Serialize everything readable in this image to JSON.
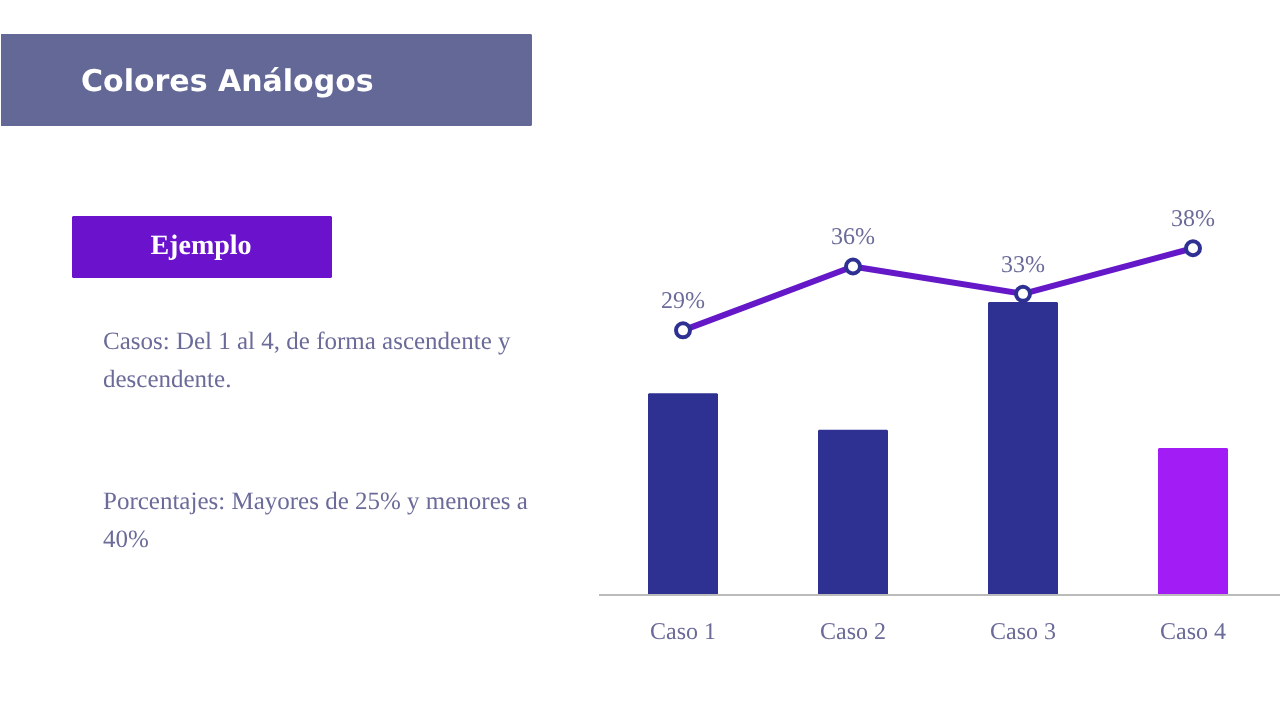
{
  "chart_data": {
    "type": "bar",
    "title": "Colores Análogos",
    "subtitle": "Ejemplo",
    "annotations": [
      "Casos: Del 1 al 4, de forma ascendente y descendente.",
      "Porcentajes: Mayores de 25% y menores a 40%"
    ],
    "categories": [
      "Caso 1",
      "Caso 2",
      "Caso 3",
      "Caso 4"
    ],
    "tick_labels": "x",
    "grid": false,
    "marker": "circle",
    "series": [
      {
        "colors": [
          "#2e3192",
          "#2e3192",
          "#2e3192",
          "#a21cf5"
        ],
        "values": [
          22,
          18,
          32,
          16
        ]
      },
      {
        "type": "line",
        "color": "#6418c8",
        "values": [
          29,
          36,
          33,
          38
        ],
        "value_labels": [
          "29%",
          "36%",
          "33%",
          "38%"
        ]
      }
    ]
  }
}
